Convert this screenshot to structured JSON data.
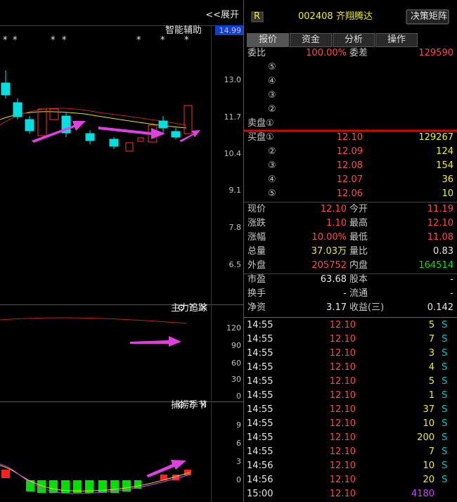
{
  "header": {
    "expand": "<<展开",
    "badge": "R",
    "code": "002408",
    "name": "齐翔腾达",
    "button": "决策矩阵"
  },
  "main_chart": {
    "title": "智能辅助",
    "stars": [
      "*",
      "*",
      "*",
      "*",
      "*",
      "*",
      "*"
    ],
    "axis": [
      "14.99",
      "13.0",
      "11.7",
      "10.4",
      "9.1",
      "7.8",
      "6.5"
    ]
  },
  "indicator1": {
    "title": "主力追踪",
    "controls": [
      "⚙",
      "?",
      "✕"
    ],
    "axis": [
      "120",
      "90",
      "60",
      "30",
      "0"
    ]
  },
  "indicator2": {
    "title": "捕捞季节",
    "controls": [
      "⚙",
      "?",
      "✕"
    ],
    "axis": [
      "9",
      "6",
      "3",
      "0"
    ]
  },
  "tabs": [
    "报价",
    "资金",
    "分析",
    "操作"
  ],
  "order_book": {
    "summary": [
      "委比",
      "100.00%",
      "委差",
      "129590"
    ],
    "asks": [
      "⑤",
      "④",
      "③",
      "②",
      "卖盘①"
    ],
    "bids": [
      [
        "买盘①",
        "12.10",
        "129267"
      ],
      [
        "②",
        "12.09",
        "124"
      ],
      [
        "③",
        "12.08",
        "154"
      ],
      [
        "④",
        "12.07",
        "36"
      ],
      [
        "⑤",
        "12.06",
        "10"
      ]
    ]
  },
  "quote": [
    [
      "现价",
      "12.10",
      "今开",
      "11.19"
    ],
    [
      "涨跌",
      "1.10",
      "最高",
      "12.10"
    ],
    [
      "涨幅",
      "10.00%",
      "最低",
      "11.08"
    ],
    [
      "总量",
      "37.03万",
      "量比",
      "0.83"
    ],
    [
      "外盘",
      "205752",
      "内盘",
      "164514"
    ]
  ],
  "fundamentals": [
    [
      "市盈",
      "63.68",
      "股本",
      "-"
    ],
    [
      "换手",
      "-",
      "流通",
      "-"
    ],
    [
      "净资",
      "3.17",
      "收益(三)",
      "0.142"
    ]
  ],
  "trades": [
    {
      "time": "14:55",
      "price": "12.10",
      "volume": "5",
      "side": "S"
    },
    {
      "time": "14:55",
      "price": "12.10",
      "volume": "7",
      "side": "S"
    },
    {
      "time": "14:55",
      "price": "12.10",
      "volume": "3",
      "side": "S"
    },
    {
      "time": "14:55",
      "price": "12.10",
      "volume": "4",
      "side": "S"
    },
    {
      "time": "14:55",
      "price": "12.10",
      "volume": "5",
      "side": "S"
    },
    {
      "time": "14:55",
      "price": "12.10",
      "volume": "1",
      "side": "S"
    },
    {
      "time": "14:55",
      "price": "12.10",
      "volume": "37",
      "side": "S"
    },
    {
      "time": "14:55",
      "price": "12.10",
      "volume": "10",
      "side": "S"
    },
    {
      "time": "14:55",
      "price": "12.10",
      "volume": "200",
      "side": "S"
    },
    {
      "time": "14:55",
      "price": "12.10",
      "volume": "7",
      "side": "S"
    },
    {
      "time": "14:56",
      "price": "12.10",
      "volume": "10",
      "side": "S"
    },
    {
      "time": "14:56",
      "price": "12.10",
      "volume": "20",
      "side": "S"
    },
    {
      "time": "15:00",
      "price": "12.10",
      "volume": "4180"
    }
  ]
}
